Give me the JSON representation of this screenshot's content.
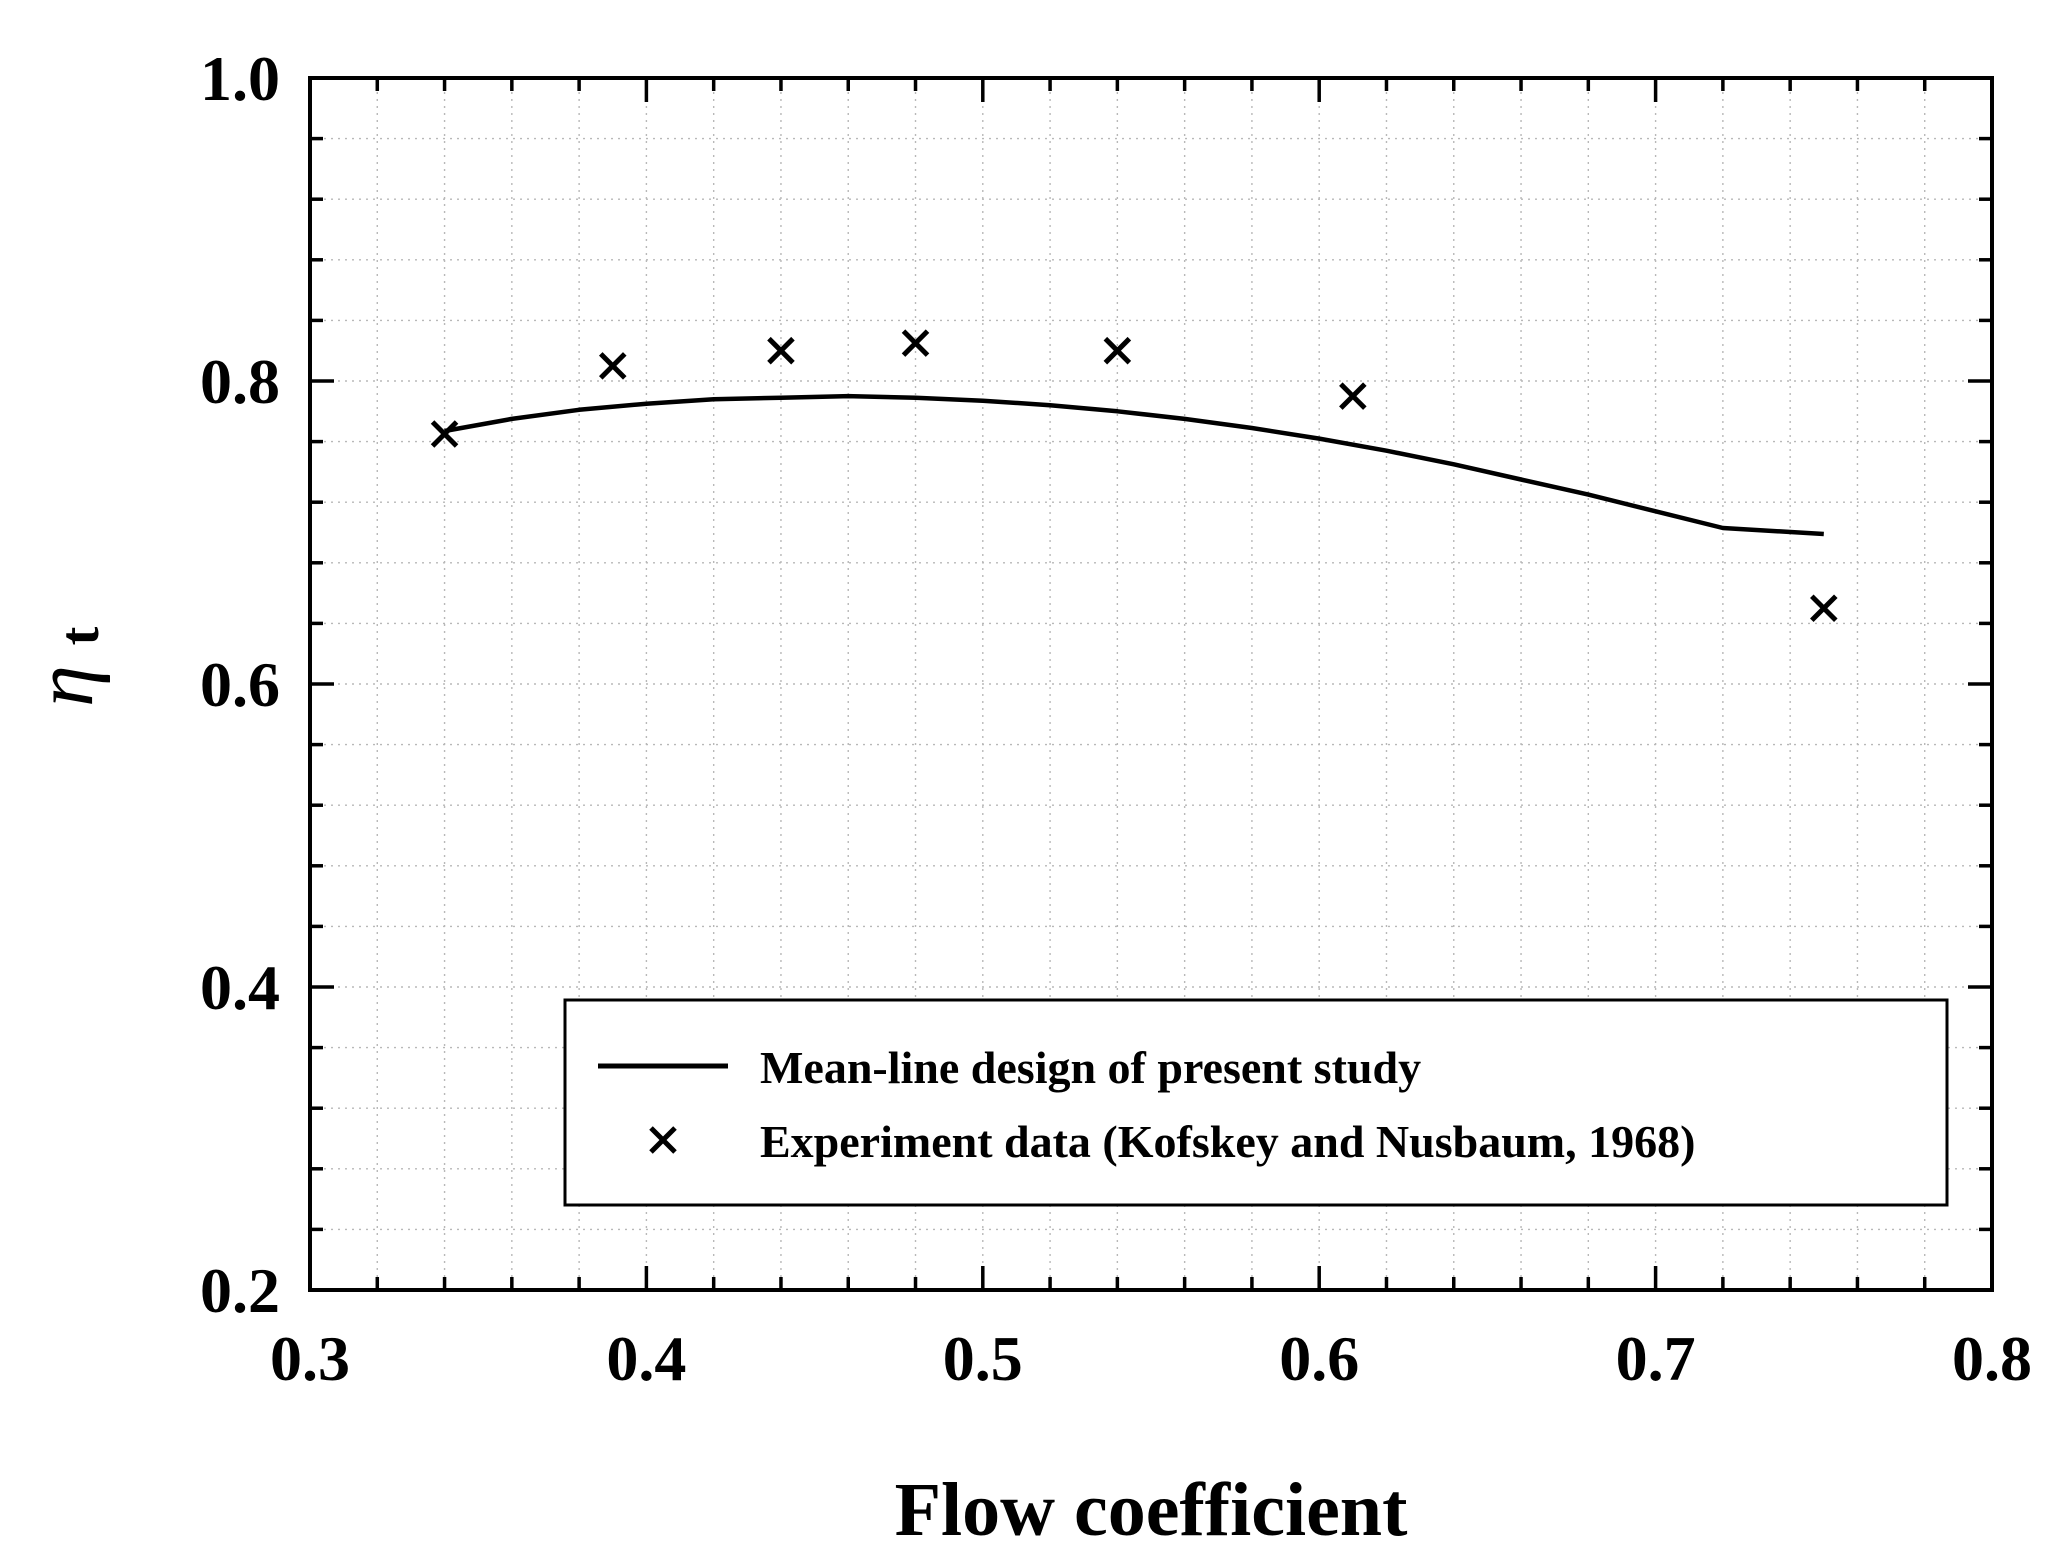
{
  "chart_data": {
    "type": "line",
    "title": "",
    "xlabel": "Flow coefficient",
    "ylabel_symbol": "η",
    "ylabel_subscript": "t",
    "xlim": [
      0.3,
      0.8
    ],
    "ylim": [
      0.2,
      1.0
    ],
    "x_ticks": [
      "0.3",
      "0.4",
      "0.5",
      "0.6",
      "0.7",
      "0.8"
    ],
    "y_ticks": [
      "0.2",
      "0.4",
      "0.6",
      "0.8",
      "1.0"
    ],
    "x_tick_values": [
      0.3,
      0.4,
      0.5,
      0.6,
      0.7,
      0.8
    ],
    "y_tick_values": [
      0.2,
      0.4,
      0.6,
      0.8,
      1.0
    ],
    "grid": true,
    "legend_position": "bottom-right",
    "series": [
      {
        "name": "Mean-line design of present study",
        "kind": "line",
        "color": "#000000",
        "x": [
          0.34,
          0.36,
          0.38,
          0.4,
          0.42,
          0.44,
          0.46,
          0.48,
          0.5,
          0.52,
          0.54,
          0.56,
          0.58,
          0.6,
          0.62,
          0.64,
          0.66,
          0.68,
          0.7,
          0.72,
          0.75
        ],
        "y": [
          0.767,
          0.775,
          0.781,
          0.785,
          0.788,
          0.789,
          0.79,
          0.789,
          0.787,
          0.784,
          0.78,
          0.775,
          0.769,
          0.762,
          0.754,
          0.745,
          0.735,
          0.725,
          0.714,
          0.703,
          0.699
        ]
      },
      {
        "name": "Experiment data (Kofskey and Nusbaum, 1968)",
        "kind": "scatter",
        "marker": "x",
        "color": "#000000",
        "x": [
          0.34,
          0.39,
          0.44,
          0.48,
          0.54,
          0.61,
          0.75
        ],
        "y": [
          0.765,
          0.81,
          0.82,
          0.825,
          0.82,
          0.79,
          0.65
        ]
      }
    ]
  }
}
